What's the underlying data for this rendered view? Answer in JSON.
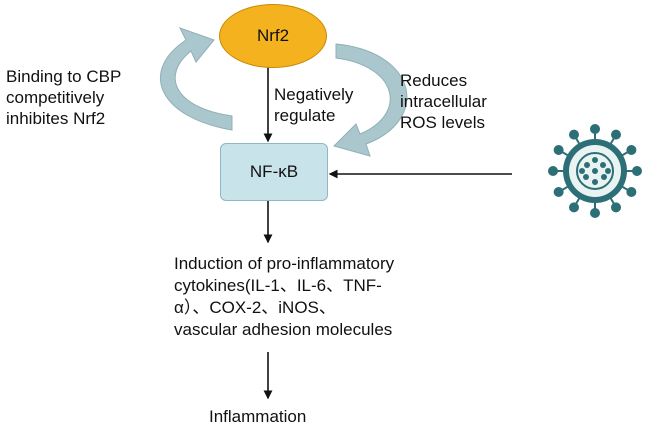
{
  "nodes": {
    "nrf2": {
      "label": "Nrf2",
      "fill": "#f5b21f",
      "stroke": "#c98a07"
    },
    "nfkb": {
      "label": "NF-κB",
      "fill": "#c8e4ea",
      "stroke": "#8fb8c2"
    }
  },
  "edges": {
    "nrf2_to_nfkb": "Negatively\nregulate",
    "left_feedback": "Binding to CBP\ncompetitively\ninhibites Nrf2",
    "right_feedback": "Reduces\nintracellular\nROS levels"
  },
  "outcomes": {
    "induction": "Induction of pro-inflammatory\ncytokines(IL-1、IL-6、TNF-\nα）、COX-2、iNOS、\nvascular adhesion molecules",
    "final": "Inflammation"
  },
  "icons": {
    "virus": "virus-icon"
  },
  "colors": {
    "curved_arrow": "#a9c7cc",
    "curved_arrow_stroke": "#8fb0b6",
    "virus_body": "#2d6f77",
    "virus_inner": "#e8f3f2",
    "arrow": "#111111"
  }
}
